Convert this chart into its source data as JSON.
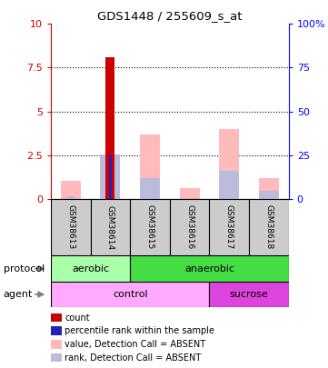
{
  "title": "GDS1448 / 255609_s_at",
  "samples": [
    "GSM38613",
    "GSM38614",
    "GSM38615",
    "GSM38616",
    "GSM38617",
    "GSM38618"
  ],
  "red_bars": [
    0.0,
    8.1,
    0.0,
    0.0,
    0.0,
    0.0
  ],
  "pink_bars": [
    1.0,
    0.0,
    3.7,
    0.6,
    4.0,
    1.2
  ],
  "blue_bars": [
    0.0,
    2.55,
    1.2,
    0.0,
    1.6,
    0.45
  ],
  "lightblue_bars": [
    0.12,
    0.0,
    0.0,
    0.0,
    0.0,
    0.12
  ],
  "blue_dot_sample": 1,
  "blue_dot_value": 2.55,
  "ylim": [
    0,
    10
  ],
  "ytick_labels_left": [
    "0",
    "2.5",
    "5",
    "7.5",
    "10"
  ],
  "ytick_labels_right": [
    "0",
    "25",
    "50",
    "75",
    "100%"
  ],
  "ytick_vals": [
    0,
    2.5,
    5,
    7.5,
    10
  ],
  "bar_color_red": "#cc0000",
  "bar_color_pink": "#ffbbbb",
  "bar_color_blue": "#2222bb",
  "bar_color_lightblue": "#bbbbdd",
  "bar_width": 0.5,
  "protocol_rows": [
    {
      "label": "aerobic",
      "start": 0,
      "end": 2,
      "color": "#aaffaa"
    },
    {
      "label": "anaerobic",
      "start": 2,
      "end": 6,
      "color": "#44dd44"
    }
  ],
  "agent_rows": [
    {
      "label": "control",
      "start": 0,
      "end": 4,
      "color": "#ffaaff"
    },
    {
      "label": "sucrose",
      "start": 4,
      "end": 6,
      "color": "#dd44dd"
    }
  ],
  "legend_items": [
    {
      "label": "count",
      "color": "#cc0000"
    },
    {
      "label": "percentile rank within the sample",
      "color": "#2222bb"
    },
    {
      "label": "value, Detection Call = ABSENT",
      "color": "#ffbbbb"
    },
    {
      "label": "rank, Detection Call = ABSENT",
      "color": "#bbbbdd"
    }
  ],
  "fig_width": 3.61,
  "fig_height": 4.05,
  "dpi": 100
}
